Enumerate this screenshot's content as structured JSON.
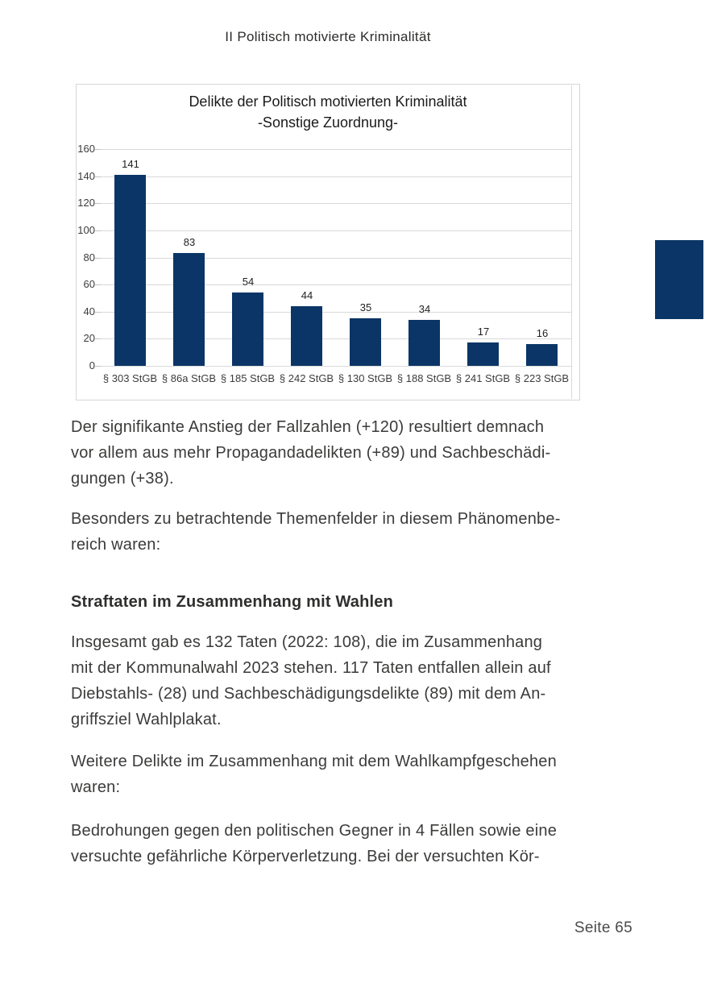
{
  "page": {
    "header": "II Politisch motivierte Kriminalität",
    "footer": "Seite 65",
    "accent_color": "#0a3566"
  },
  "chart_data": {
    "type": "bar",
    "title_line1": "Delikte der Politisch motivierten Kriminalität",
    "title_line2": "-Sonstige Zuordnung-",
    "categories": [
      "§ 303 StGB",
      "§ 86a StGB",
      "§ 185 StGB",
      "§ 242 StGB",
      "§ 130 StGB",
      "§ 188 StGB",
      "§ 241 StGB",
      "§ 223 StGB"
    ],
    "values": [
      141,
      83,
      54,
      44,
      35,
      34,
      17,
      16
    ],
    "y_ticks": [
      0,
      20,
      40,
      60,
      80,
      100,
      120,
      140,
      160
    ],
    "ylim": [
      0,
      160
    ],
    "bar_color": "#0a3566",
    "grid": true,
    "legend": "none",
    "xlabel": "",
    "ylabel": ""
  },
  "body": {
    "para1": "Der signifikante Anstieg der Fallzahlen (+120) resultiert demnach\nvor allem aus mehr Propagandadelikten (+89) und Sachbeschädi-\ngungen (+38).",
    "para2": "Besonders zu betrachtende Themenfelder in diesem Phänomenbe-\nreich waren:",
    "heading1": "Straftaten im Zusammenhang mit Wahlen",
    "para3": "Insgesamt gab es 132 Taten (2022: 108), die im Zusammenhang\nmit der Kommunalwahl 2023 stehen. 117 Taten entfallen allein auf\nDiebstahls- (28) und Sachbeschädigungsdelikte (89) mit dem An-\ngriffsziel Wahlplakat.",
    "para4": "Weitere Delikte im Zusammenhang mit dem Wahlkampfgeschehen\nwaren:",
    "para5": "Bedrohungen gegen den politischen Gegner in 4 Fällen sowie eine\nversuchte gefährliche Körperverletzung. Bei der versuchten Kör-"
  }
}
